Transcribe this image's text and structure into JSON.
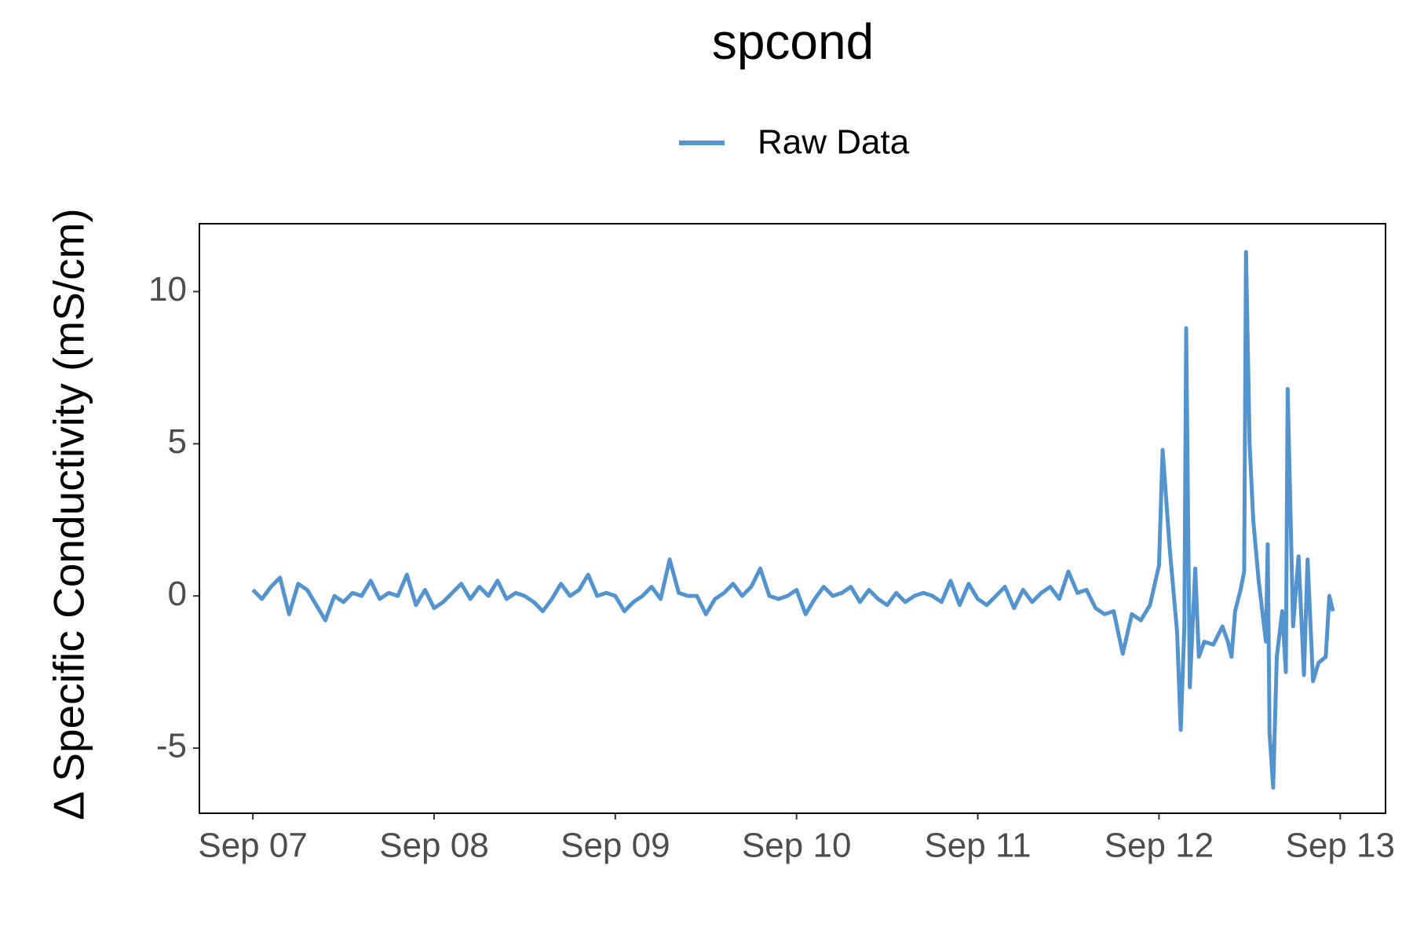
{
  "chart_data": {
    "type": "line",
    "title": "spcond",
    "y_label": "Δ Specific Conductivity (mS/cm)",
    "legend": "top",
    "grid": false,
    "x": [
      7.0,
      7.05,
      7.1,
      7.15,
      7.2,
      7.25,
      7.3,
      7.35,
      7.4,
      7.45,
      7.5,
      7.55,
      7.6,
      7.65,
      7.7,
      7.75,
      7.8,
      7.85,
      7.9,
      7.95,
      8.0,
      8.05,
      8.1,
      8.15,
      8.2,
      8.25,
      8.3,
      8.35,
      8.4,
      8.45,
      8.5,
      8.55,
      8.6,
      8.65,
      8.7,
      8.75,
      8.8,
      8.85,
      8.9,
      8.95,
      9.0,
      9.05,
      9.1,
      9.15,
      9.2,
      9.25,
      9.3,
      9.35,
      9.4,
      9.45,
      9.5,
      9.55,
      9.6,
      9.65,
      9.7,
      9.75,
      9.8,
      9.85,
      9.9,
      9.95,
      10.0,
      10.05,
      10.1,
      10.15,
      10.2,
      10.25,
      10.3,
      10.35,
      10.4,
      10.45,
      10.5,
      10.55,
      10.6,
      10.65,
      10.7,
      10.75,
      10.8,
      10.85,
      10.9,
      10.95,
      11.0,
      11.05,
      11.1,
      11.15,
      11.2,
      11.25,
      11.3,
      11.35,
      11.4,
      11.45,
      11.5,
      11.55,
      11.6,
      11.65,
      11.7,
      11.75,
      11.8,
      11.85,
      11.9,
      11.95,
      12.0,
      12.02,
      12.06,
      12.1,
      12.12,
      12.14,
      12.15,
      12.17,
      12.2,
      12.22,
      12.25,
      12.3,
      12.35,
      12.38,
      12.4,
      12.42,
      12.45,
      12.47,
      12.48,
      12.5,
      12.52,
      12.55,
      12.59,
      12.6,
      12.61,
      12.63,
      12.65,
      12.68,
      12.7,
      12.71,
      12.74,
      12.77,
      12.8,
      12.82,
      12.85,
      12.88,
      12.92,
      12.94,
      12.96
    ],
    "series": [
      {
        "name": "Raw Data",
        "color": "#5394cf",
        "values": [
          0.2,
          -0.1,
          0.3,
          0.6,
          -0.6,
          0.4,
          0.2,
          -0.3,
          -0.8,
          0,
          -0.2,
          0.1,
          0,
          0.5,
          -0.1,
          0.1,
          0,
          0.7,
          -0.3,
          0.2,
          -0.4,
          -0.2,
          0.1,
          0.4,
          -0.1,
          0.3,
          0,
          0.5,
          -0.1,
          0.1,
          0,
          -0.2,
          -0.5,
          -0.1,
          0.4,
          0,
          0.2,
          0.7,
          0,
          0.1,
          0,
          -0.5,
          -0.2,
          0,
          0.3,
          -0.1,
          1.2,
          0.1,
          0,
          0,
          -0.6,
          -0.1,
          0.1,
          0.4,
          0,
          0.3,
          0.9,
          0,
          -0.1,
          0,
          0.2,
          -0.6,
          -0.1,
          0.3,
          0,
          0.1,
          0.3,
          -0.2,
          0.2,
          -0.1,
          -0.3,
          0.1,
          -0.2,
          0,
          0.1,
          0,
          -0.2,
          0.5,
          -0.3,
          0.4,
          -0.1,
          -0.3,
          0,
          0.3,
          -0.4,
          0.2,
          -0.2,
          0.1,
          0.3,
          -0.1,
          0.8,
          0.1,
          0.2,
          -0.4,
          -0.6,
          -0.5,
          -1.9,
          -0.6,
          -0.8,
          -0.3,
          1.0,
          4.8,
          1.5,
          -1.2,
          -4.4,
          -1.0,
          8.8,
          -3.0,
          0.9,
          -2.0,
          -1.5,
          -1.6,
          -1.0,
          -1.5,
          -2.0,
          -0.5,
          0.2,
          0.8,
          11.3,
          5.0,
          2.5,
          0.5,
          -1.5,
          1.7,
          -4.5,
          -6.3,
          -2.0,
          -0.5,
          -2.5,
          6.8,
          -1.0,
          1.3,
          -2.6,
          1.2,
          -2.8,
          -2.2,
          -2.0,
          0,
          -0.5
        ]
      }
    ],
    "xlim": [
      6.705,
      13.25
    ],
    "xticks": [
      {
        "value": 7,
        "label": "Sep 07"
      },
      {
        "value": 8,
        "label": "Sep 08"
      },
      {
        "value": 9,
        "label": "Sep 09"
      },
      {
        "value": 10,
        "label": "Sep 10"
      },
      {
        "value": 11,
        "label": "Sep 11"
      },
      {
        "value": 12,
        "label": "Sep 12"
      },
      {
        "value": 13,
        "label": "Sep 13"
      }
    ],
    "ylim": [
      -7.14,
      12.23
    ],
    "yticks": [
      -5,
      0,
      5,
      10
    ]
  }
}
